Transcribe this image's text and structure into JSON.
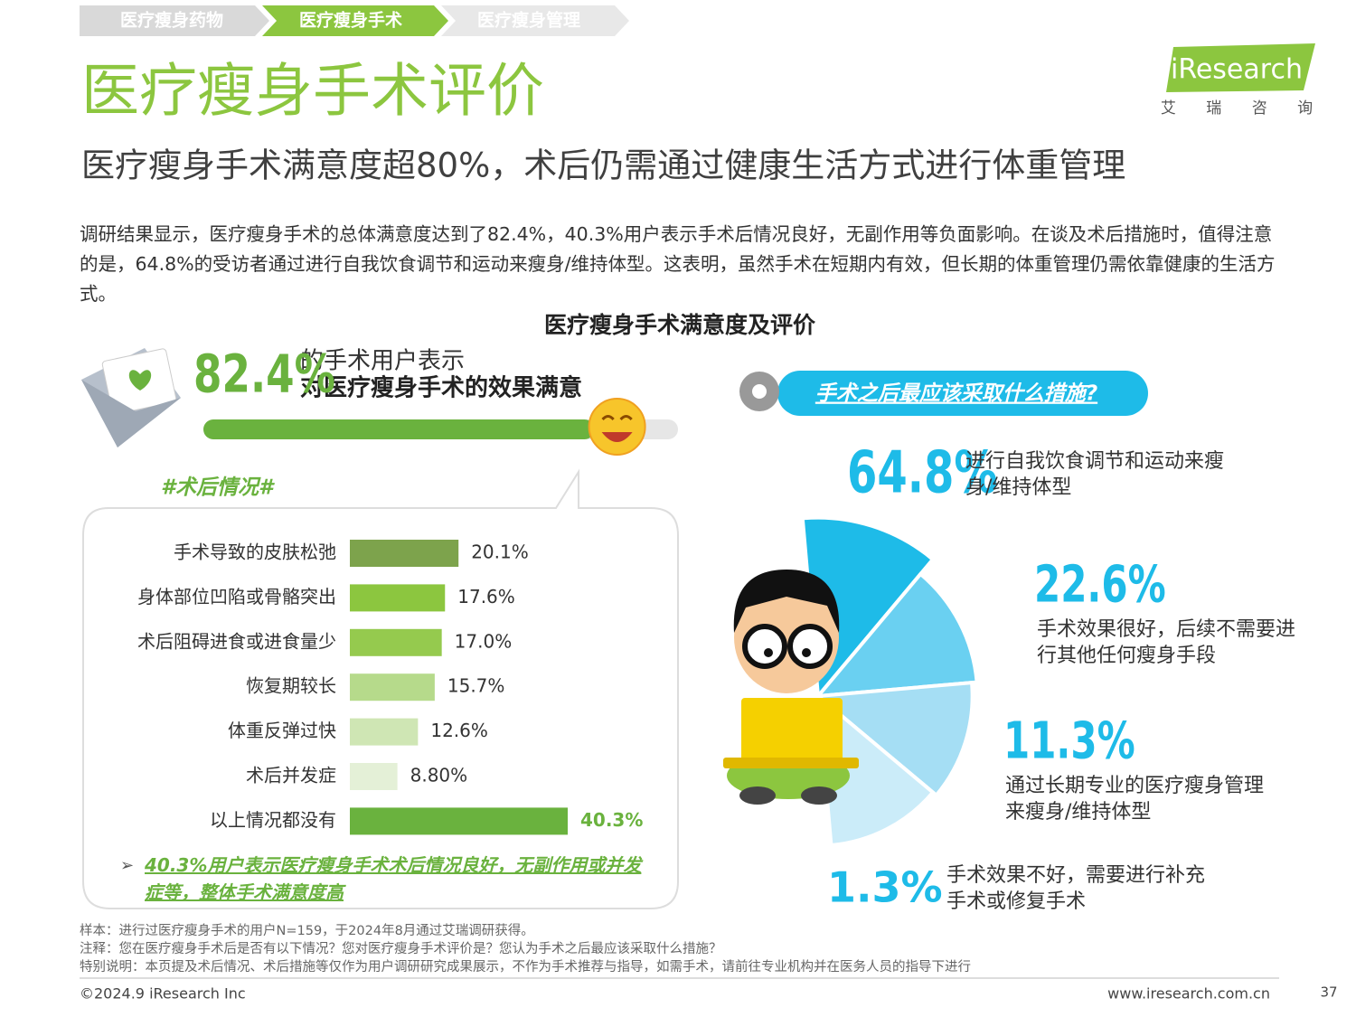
{
  "nav": [
    "医疗瘦身药物",
    "医疗瘦身手术",
    "医疗瘦身管理"
  ],
  "title": "医疗瘦身手术评价",
  "subtitle": "医疗瘦身手术满意度超80%，术后仍需通过健康生活方式进行体重管理",
  "logo": {
    "brand": "iResearch",
    "cn": "艾 瑞 咨 询"
  },
  "body": "调研结果显示，医疗瘦身手术的总体满意度达到了82.4%，40.3%用户表示手术后情况良好，无副作用等负面影响。在谈及术后措施时，值得注意的是，64.8%的受访者通过进行自我饮食调节和运动来瘦身/维持体型。这表明，虽然手术在短期内有效，但长期的体重管理仍需依靠健康的生活方式。",
  "section_title": "医疗瘦身手术满意度及评价",
  "satisfaction": {
    "value": 82.4,
    "value_label": "82.4%",
    "line1": "的手术用户表示",
    "line2": "对医疗瘦身手术的效果满意"
  },
  "chart_data": [
    {
      "type": "bar",
      "orientation": "horizontal",
      "title": "#术后情况#",
      "categories": [
        "手术导致的皮肤松弛",
        "身体部位凹陷或骨骼突出",
        "术后阻碍进食或进食量少",
        "恢复期较长",
        "体重反弹过快",
        "术后并发症",
        "以上情况都没有"
      ],
      "values": [
        20.1,
        17.6,
        17.0,
        15.7,
        12.6,
        8.8,
        40.3
      ],
      "value_labels": [
        "20.1%",
        "17.6%",
        "17.0%",
        "15.7%",
        "12.6%",
        "8.80%",
        "40.3%"
      ],
      "colors": [
        "#7da34c",
        "#8cc63f",
        "#95ca4e",
        "#b6da8b",
        "#cfe6b4",
        "#e4f0d7",
        "#6ab23e"
      ],
      "note": "40.3%用户表示医疗瘦身手术术后情况良好，无副作用或并发症等，整体手术满意度高"
    },
    {
      "type": "pie",
      "title": "手术之后最应该采取什么措施?",
      "categories": [
        "进行自我饮食调节和运动来瘦身/维持体型",
        "手术效果很好，后续不需要进行其他任何瘦身手段",
        "通过长期专业的医疗瘦身管理来瘦身/维持体型",
        "手术效果不好，需要进行补充手术或修复手术"
      ],
      "values": [
        64.8,
        22.6,
        11.3,
        1.3
      ],
      "value_labels": [
        "64.8%",
        "22.6%",
        "11.3%",
        "1.3%"
      ],
      "colors": [
        "#1ebbe8",
        "#6ad0f1",
        "#a5def4",
        "#cbecf9"
      ]
    }
  ],
  "footer": {
    "notes": [
      "样本：进行过医疗瘦身手术的用户N=159，于2024年8月通过艾瑞调研获得。",
      "注释：您在医疗瘦身手术后是否有以下情况？您对医疗瘦身手术评价是？您认为手术之后最应该采取什么措施？",
      "特别说明：本页提及术后情况、术后措施等仅作为用户调研研究成果展示，不作为手术推荐与指导，如需手术，请前往专业机构并在医务人员的指导下进行"
    ],
    "copyright": "©2024.9 iResearch Inc",
    "website": "www.iresearch.com.cn",
    "page": "37"
  }
}
